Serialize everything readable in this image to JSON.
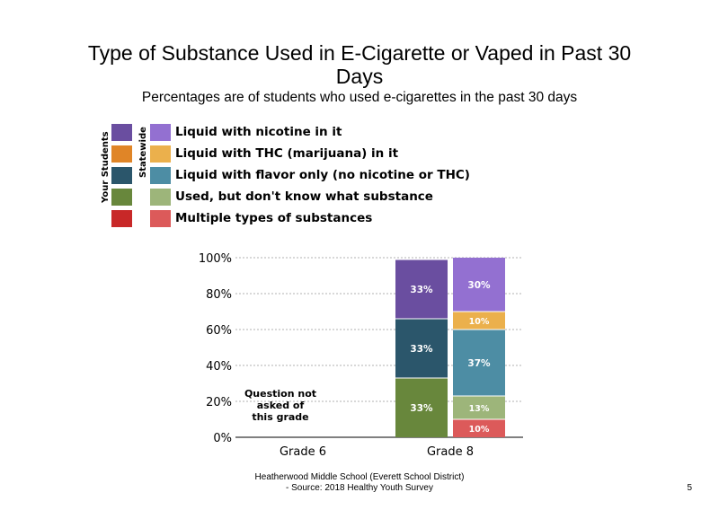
{
  "title_line1": "Type of Substance Used in E-Cigarette or Vaped in Past 30",
  "title_line2": "Days",
  "subtitle": "Percentages are of students who used e-cigarettes in the past 30 days",
  "legend": {
    "your_students_label": "Your Students",
    "statewide_label": "Statewide",
    "items": [
      {
        "label": "Liquid with nicotine in it",
        "your_color": "#6a4ea0",
        "state_color": "#9370d1"
      },
      {
        "label": "Liquid with THC (marijuana) in it",
        "your_color": "#e08527",
        "state_color": "#ebb04c"
      },
      {
        "label": "Liquid with flavor only (no nicotine or THC)",
        "your_color": "#2b566b",
        "state_color": "#4d8da4"
      },
      {
        "label": "Used, but don't know what substance",
        "your_color": "#68873c",
        "state_color": "#9db57a"
      },
      {
        "label": "Multiple types of substances",
        "your_color": "#c82828",
        "state_color": "#dc5a5a"
      }
    ]
  },
  "chart_data": {
    "type": "bar",
    "stacked": true,
    "categories": [
      "Grade 6",
      "Grade 8"
    ],
    "ylim": [
      0,
      100
    ],
    "yticks": [
      "0%",
      "20%",
      "40%",
      "60%",
      "80%",
      "100%"
    ],
    "grid": true,
    "note": {
      "category": "Grade 6",
      "lines": [
        "Question not",
        "asked of",
        "this grade"
      ]
    },
    "bars": [
      {
        "category": "Grade 8",
        "group": "Your Students",
        "segments": [
          {
            "series": "Multiple types of substances",
            "value": 0,
            "label": "",
            "color": "#c82828"
          },
          {
            "series": "Used, but don't know what substance",
            "value": 33,
            "label": "33%",
            "color": "#68873c"
          },
          {
            "series": "Liquid with flavor only (no nicotine or THC)",
            "value": 33,
            "label": "33%",
            "color": "#2b566b"
          },
          {
            "series": "Liquid with THC (marijuana) in it",
            "value": 0,
            "label": "",
            "color": "#e08527"
          },
          {
            "series": "Liquid with nicotine in it",
            "value": 33,
            "label": "33%",
            "color": "#6a4ea0"
          }
        ]
      },
      {
        "category": "Grade 8",
        "group": "Statewide",
        "segments": [
          {
            "series": "Multiple types of substances",
            "value": 10,
            "label": "10%",
            "color": "#dc5a5a"
          },
          {
            "series": "Used, but don't know what substance",
            "value": 13,
            "label": "13%",
            "color": "#9db57a"
          },
          {
            "series": "Liquid with flavor only (no nicotine or THC)",
            "value": 37,
            "label": "37%",
            "color": "#4d8da4"
          },
          {
            "series": "Liquid with THC (marijuana) in it",
            "value": 10,
            "label": "10%",
            "color": "#ebb04c"
          },
          {
            "series": "Liquid with nicotine in it",
            "value": 30,
            "label": "30%",
            "color": "#9370d1"
          }
        ]
      }
    ]
  },
  "footer_line1": "Heatherwood Middle School (Everett School District)",
  "footer_line2": "- Source: 2018 Healthy Youth Survey",
  "page_number": "5"
}
